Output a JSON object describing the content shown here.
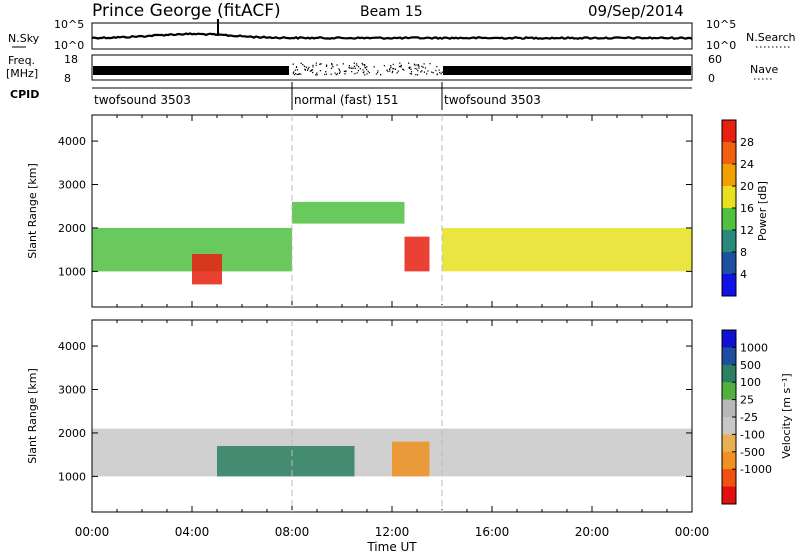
{
  "header": {
    "title": "Prince George (fitACF)",
    "beam": "Beam 15",
    "date": "09/Sep/2014"
  },
  "top_panels": {
    "nsky_label": "N.Sky",
    "nsky_ticks": [
      "10^5",
      "10^0"
    ],
    "nsearch_label": "N.Search",
    "freq_label_1": "Freq.",
    "freq_label_2": "[MHz]",
    "freq_ticks": [
      "18",
      "8"
    ],
    "nave_label": "Nave",
    "nave_ticks": [
      "60",
      "0"
    ],
    "cpid_label": "CPID",
    "cpid_segments": [
      {
        "label": "twofsound 3503",
        "start_h": 0,
        "end_h": 8
      },
      {
        "label": "normal (fast) 151",
        "start_h": 8,
        "end_h": 14
      },
      {
        "label": "twofsound 3503",
        "start_h": 14,
        "end_h": 24
      }
    ]
  },
  "x_axis": {
    "label": "Time UT",
    "ticks": [
      "00:00",
      "04:00",
      "08:00",
      "12:00",
      "16:00",
      "20:00",
      "00:00"
    ]
  },
  "colors": {
    "power_scale": [
      "#1010e8",
      "#1c50a0",
      "#2a8a7a",
      "#50c040",
      "#e8e020",
      "#f0a000",
      "#f06010",
      "#e82010"
    ],
    "velocity_scale": [
      "#e01010",
      "#f05010",
      "#f09020",
      "#e8b050",
      "#c8c8c8",
      "#b8b8b8",
      "#50b040",
      "#2a8060",
      "#1c4ea0",
      "#1010d0"
    ]
  },
  "chart_data": [
    {
      "type": "heatmap",
      "title": "",
      "xlabel": "Time UT",
      "ylabel": "Slant Range [km]",
      "xlim": [
        0,
        24
      ],
      "ylim": [
        180,
        4600
      ],
      "yticks": [
        "1000",
        "2000",
        "3000",
        "4000"
      ],
      "colorbar_label": "Power [dB]",
      "colorbar_ticks": [
        "4",
        "8",
        "12",
        "16",
        "20",
        "24",
        "28"
      ],
      "colorbar_range": [
        0,
        32
      ],
      "features": [
        {
          "from_h": 0.0,
          "to_h": 8.0,
          "range_km": [
            1000,
            2000
          ],
          "value": 12
        },
        {
          "from_h": 4.0,
          "to_h": 5.2,
          "range_km": [
            700,
            1400
          ],
          "value": 28
        },
        {
          "from_h": 8.0,
          "to_h": 12.5,
          "range_km": [
            2100,
            2600
          ],
          "value": 14
        },
        {
          "from_h": 12.5,
          "to_h": 13.5,
          "range_km": [
            1000,
            1800
          ],
          "value": 28
        },
        {
          "from_h": 14.0,
          "to_h": 24.0,
          "range_km": [
            1000,
            2000
          ],
          "value": 16
        }
      ]
    },
    {
      "type": "heatmap",
      "title": "",
      "xlabel": "Time UT",
      "ylabel": "Slant Range [km]",
      "xlim": [
        0,
        24
      ],
      "ylim": [
        180,
        4600
      ],
      "yticks": [
        "1000",
        "2000",
        "3000",
        "4000"
      ],
      "colorbar_label": "Velocity [m s⁻¹]",
      "colorbar_ticks": [
        "1000",
        "500",
        "100",
        "25",
        "-25",
        "-100",
        "-500",
        "-1000"
      ],
      "features": [
        {
          "from_h": 0.0,
          "to_h": 24.0,
          "range_km": [
            1000,
            2100
          ],
          "value": 0
        },
        {
          "from_h": 5.0,
          "to_h": 10.5,
          "range_km": [
            1000,
            1700
          ],
          "value": 200
        },
        {
          "from_h": 12.0,
          "to_h": 13.5,
          "range_km": [
            1000,
            1800
          ],
          "value": -400
        }
      ]
    }
  ]
}
